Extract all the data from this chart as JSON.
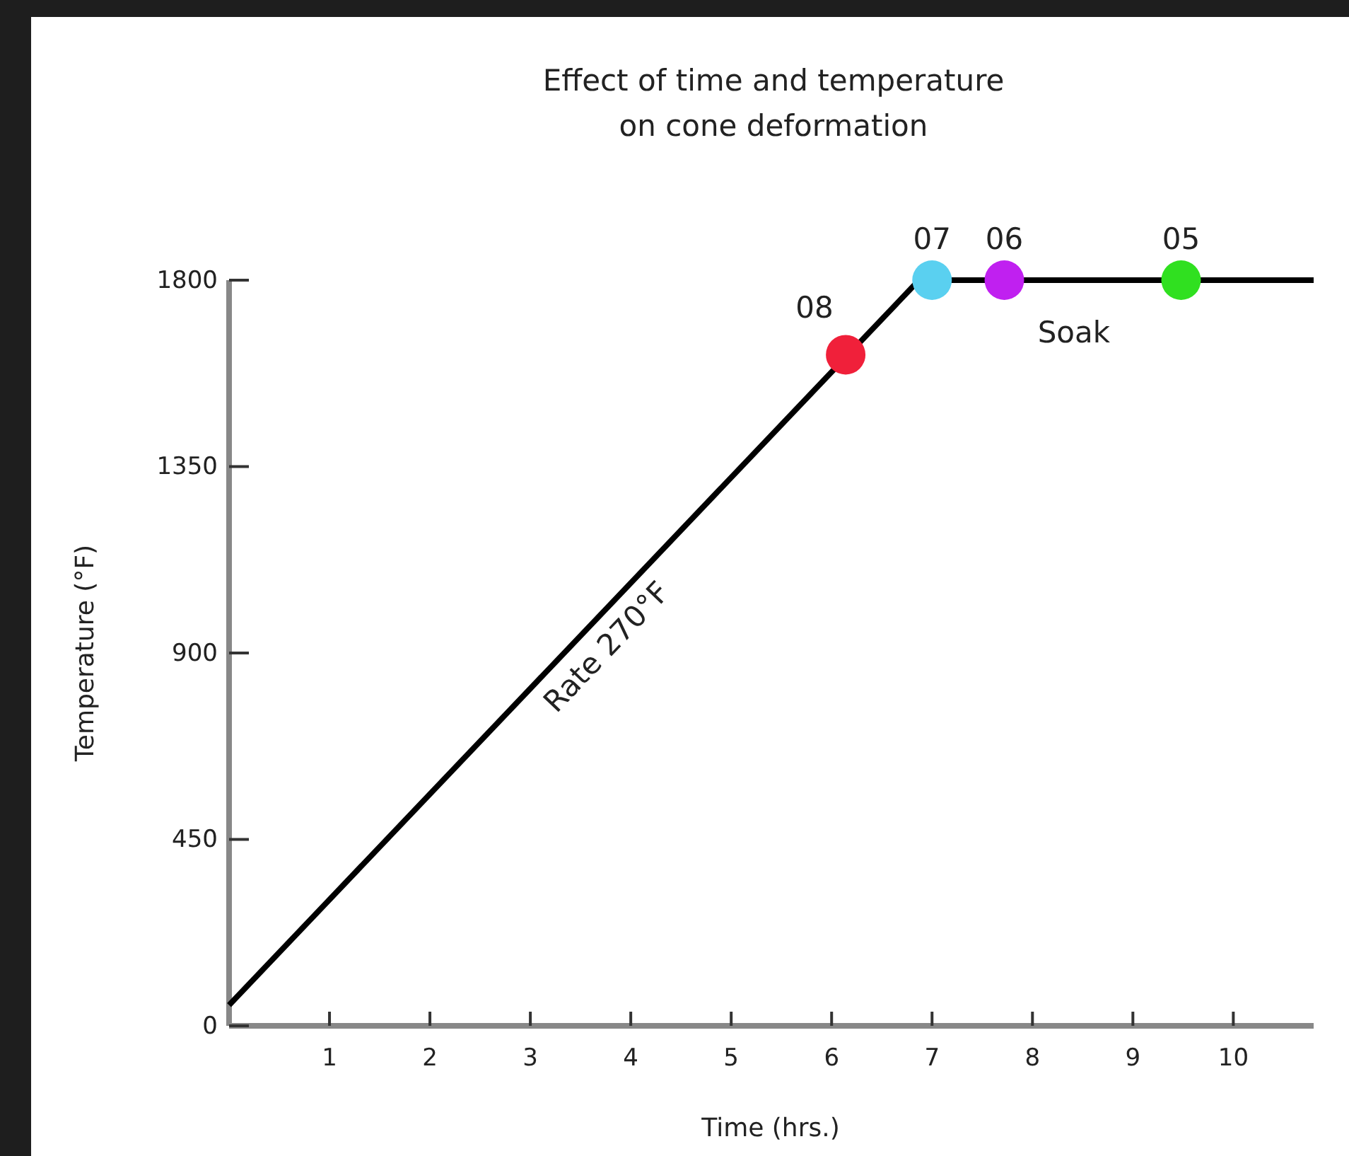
{
  "chart_data": {
    "type": "line",
    "title": "Effect of time and temperature\non cone deformation",
    "xlabel": "Time (hrs.)",
    "ylabel": "Temperature (°F)",
    "xlim": [
      0,
      10.8
    ],
    "xticks": [
      1,
      2,
      3,
      4,
      5,
      6,
      7,
      8,
      9,
      10
    ],
    "ylim": [
      0,
      1800
    ],
    "yticks": [
      0,
      450,
      900,
      1350,
      1800
    ],
    "grid": false,
    "legend": false,
    "line_style": "solid",
    "series": [
      {
        "color": "#000000",
        "marker": "none",
        "x": [
          0,
          6.87,
          10.8
        ],
        "values": [
          50,
          1800,
          1800
        ]
      },
      {
        "type": "scatter",
        "name": "08",
        "color": "#f0203a",
        "x": [
          6.14
        ],
        "values": [
          1620
        ]
      },
      {
        "type": "scatter",
        "name": "07",
        "color": "#5ad0f0",
        "x": [
          7.0
        ],
        "values": [
          1800
        ]
      },
      {
        "type": "scatter",
        "name": "06",
        "color": "#c020f0",
        "x": [
          7.72
        ],
        "values": [
          1800
        ]
      },
      {
        "type": "scatter",
        "name": "05",
        "color": "#30e020",
        "x": [
          9.48
        ],
        "values": [
          1800
        ]
      }
    ],
    "annotations": [
      "Rate 270°F",
      "Soak"
    ]
  }
}
